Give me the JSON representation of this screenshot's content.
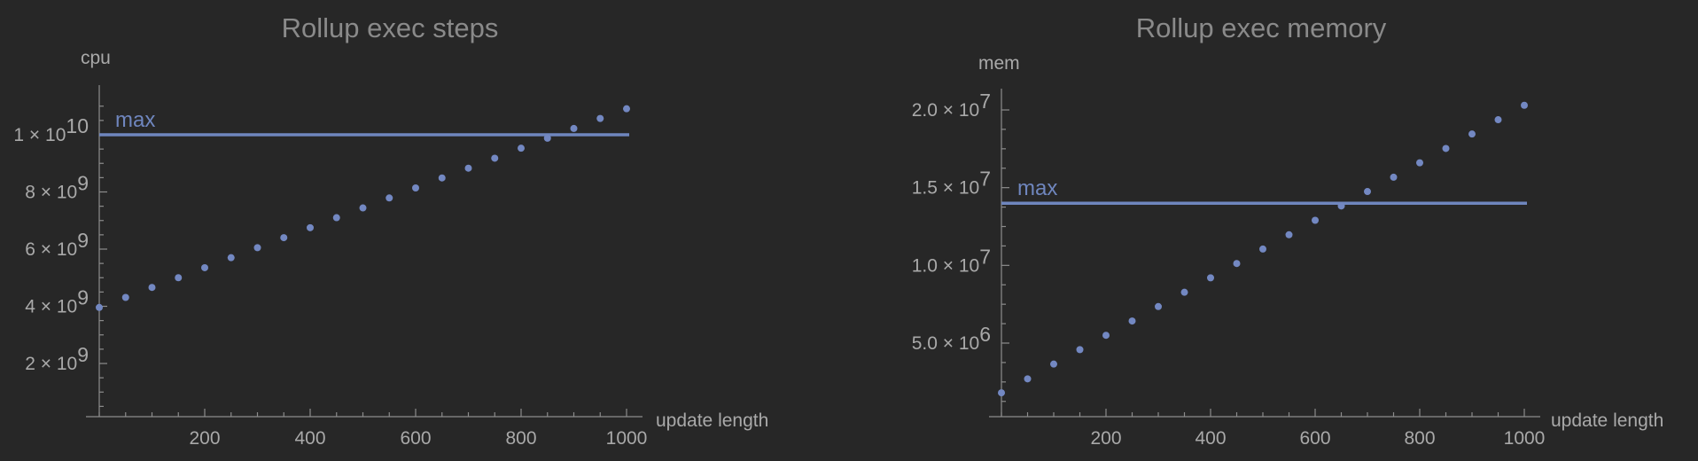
{
  "chart_data": [
    {
      "type": "scatter",
      "title": "Rollup exec steps",
      "xlabel": "update length",
      "ylabel": "cpu",
      "xlim": [
        0,
        1000
      ],
      "ylim": [
        0,
        11000000000
      ],
      "x_ticks": [
        {
          "value": 200,
          "label": "200"
        },
        {
          "value": 400,
          "label": "400"
        },
        {
          "value": 600,
          "label": "600"
        },
        {
          "value": 800,
          "label": "800"
        },
        {
          "value": 1000,
          "label": "1000"
        }
      ],
      "y_ticks": [
        {
          "value": 2000000000,
          "mant": "2 × 10",
          "exp": "9"
        },
        {
          "value": 4000000000,
          "mant": "4 × 10",
          "exp": "9"
        },
        {
          "value": 6000000000,
          "mant": "6 × 10",
          "exp": "9"
        },
        {
          "value": 8000000000,
          "mant": "8 × 10",
          "exp": "9"
        },
        {
          "value": 10000000000,
          "mant": "1 × 10",
          "exp": "10"
        }
      ],
      "reference_line": {
        "value": 10000000000,
        "label": "max"
      },
      "series": [
        {
          "x": [
            0,
            50,
            100,
            150,
            200,
            250,
            300,
            350,
            400,
            450,
            500,
            550,
            600,
            650,
            700,
            750,
            800,
            850,
            900,
            950,
            1000
          ],
          "y": [
            3960000000,
            4310000000,
            4660000000,
            5000000000,
            5350000000,
            5700000000,
            6050000000,
            6400000000,
            6750000000,
            7100000000,
            7440000000,
            7790000000,
            8140000000,
            8490000000,
            8830000000,
            9180000000,
            9530000000,
            9880000000,
            10220000000,
            10570000000,
            10910000000
          ]
        }
      ],
      "colors": {
        "points": "#7388c2",
        "line": "#6f86be"
      },
      "grid": false
    },
    {
      "type": "scatter",
      "title": "Rollup exec memory",
      "xlabel": "update length",
      "ylabel": "mem",
      "xlim": [
        0,
        1000
      ],
      "ylim": [
        0,
        20500000
      ],
      "x_ticks": [
        {
          "value": 200,
          "label": "200"
        },
        {
          "value": 400,
          "label": "400"
        },
        {
          "value": 600,
          "label": "600"
        },
        {
          "value": 800,
          "label": "800"
        },
        {
          "value": 1000,
          "label": "1000"
        }
      ],
      "y_ticks": [
        {
          "value": 5000000,
          "mant": "5.0 × 10",
          "exp": "6"
        },
        {
          "value": 10000000,
          "mant": "1.0 × 10",
          "exp": "7"
        },
        {
          "value": 15000000,
          "mant": "1.5 × 10",
          "exp": "7"
        },
        {
          "value": 20000000,
          "mant": "2.0 × 10",
          "exp": "7"
        }
      ],
      "reference_line": {
        "value": 14000000,
        "label": "max"
      },
      "series": [
        {
          "x": [
            0,
            50,
            100,
            150,
            200,
            250,
            300,
            350,
            400,
            450,
            500,
            550,
            600,
            650,
            700,
            750,
            800,
            850,
            900,
            950,
            1000
          ],
          "y": [
            1800000,
            2700000,
            3650000,
            4580000,
            5500000,
            6420000,
            7350000,
            8270000,
            9200000,
            10120000,
            11050000,
            11970000,
            12900000,
            13820000,
            14750000,
            15670000,
            16600000,
            17520000,
            18450000,
            19370000,
            20300000
          ]
        }
      ],
      "colors": {
        "points": "#7388c2",
        "line": "#6f86be"
      },
      "grid": false
    }
  ]
}
